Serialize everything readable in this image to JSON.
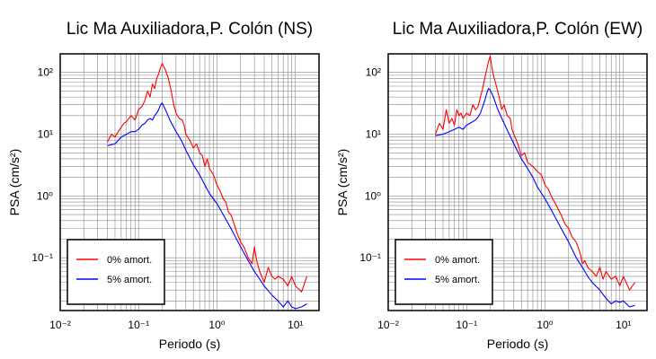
{
  "chart_data": [
    {
      "type": "line",
      "title": "Lic Ma Auxiliadora,P. Colón (NS)",
      "xlabel": "Periodo (s)",
      "ylabel": "PSA (cm/s²)",
      "xscale": "log",
      "yscale": "log",
      "xlim": [
        0.01,
        20
      ],
      "ylim": [
        0.014,
        200
      ],
      "xticks": [
        0.01,
        0.1,
        1,
        10
      ],
      "xtick_labels": [
        "10⁻²",
        "10⁻¹",
        "10⁰",
        "10¹"
      ],
      "yticks": [
        0.1,
        1,
        10,
        100
      ],
      "ytick_labels": [
        "10⁻¹",
        "10⁰",
        "10¹",
        "10²"
      ],
      "grid": true,
      "legend_position": "bottom-left",
      "series": [
        {
          "name": "0% amort.",
          "color": "#ff0000",
          "points": [
            [
              0.04,
              7.5
            ],
            [
              0.045,
              10
            ],
            [
              0.05,
              9
            ],
            [
              0.055,
              11
            ],
            [
              0.06,
              13
            ],
            [
              0.065,
              15
            ],
            [
              0.07,
              16
            ],
            [
              0.08,
              20
            ],
            [
              0.09,
              17
            ],
            [
              0.1,
              25
            ],
            [
              0.11,
              28
            ],
            [
              0.12,
              35
            ],
            [
              0.13,
              50
            ],
            [
              0.14,
              40
            ],
            [
              0.15,
              65
            ],
            [
              0.16,
              55
            ],
            [
              0.17,
              80
            ],
            [
              0.18,
              95
            ],
            [
              0.19,
              120
            ],
            [
              0.2,
              140
            ],
            [
              0.22,
              110
            ],
            [
              0.24,
              80
            ],
            [
              0.26,
              50
            ],
            [
              0.28,
              30
            ],
            [
              0.3,
              22
            ],
            [
              0.33,
              18
            ],
            [
              0.36,
              17
            ],
            [
              0.38,
              14
            ],
            [
              0.4,
              10
            ],
            [
              0.45,
              8
            ],
            [
              0.5,
              6
            ],
            [
              0.55,
              7
            ],
            [
              0.6,
              5
            ],
            [
              0.65,
              4.5
            ],
            [
              0.7,
              3
            ],
            [
              0.75,
              4
            ],
            [
              0.8,
              2.8
            ],
            [
              0.9,
              2.2
            ],
            [
              1.0,
              1.5
            ],
            [
              1.1,
              1.2
            ],
            [
              1.2,
              0.9
            ],
            [
              1.3,
              0.8
            ],
            [
              1.4,
              0.55
            ],
            [
              1.5,
              0.5
            ],
            [
              1.6,
              0.4
            ],
            [
              1.8,
              0.25
            ],
            [
              2.0,
              0.18
            ],
            [
              2.2,
              0.15
            ],
            [
              2.5,
              0.1
            ],
            [
              2.8,
              0.08
            ],
            [
              3.0,
              0.15
            ],
            [
              3.2,
              0.09
            ],
            [
              3.5,
              0.06
            ],
            [
              4.0,
              0.04
            ],
            [
              4.5,
              0.07
            ],
            [
              5.0,
              0.05
            ],
            [
              5.5,
              0.045
            ],
            [
              6.0,
              0.05
            ],
            [
              7.0,
              0.045
            ],
            [
              8.0,
              0.035
            ],
            [
              9.0,
              0.05
            ],
            [
              10.0,
              0.035
            ],
            [
              12.0,
              0.028
            ],
            [
              14.0,
              0.05
            ]
          ]
        },
        {
          "name": "5% amort.",
          "color": "#0000ff",
          "points": [
            [
              0.04,
              6.5
            ],
            [
              0.05,
              7
            ],
            [
              0.06,
              9
            ],
            [
              0.07,
              10
            ],
            [
              0.08,
              11
            ],
            [
              0.09,
              11
            ],
            [
              0.1,
              12
            ],
            [
              0.11,
              14
            ],
            [
              0.12,
              15
            ],
            [
              0.13,
              17
            ],
            [
              0.14,
              18
            ],
            [
              0.15,
              17
            ],
            [
              0.16,
              20
            ],
            [
              0.17,
              22
            ],
            [
              0.18,
              25
            ],
            [
              0.19,
              30
            ],
            [
              0.2,
              32
            ],
            [
              0.22,
              25
            ],
            [
              0.25,
              17
            ],
            [
              0.3,
              11
            ],
            [
              0.35,
              8
            ],
            [
              0.4,
              5.5
            ],
            [
              0.5,
              3.2
            ],
            [
              0.6,
              2.2
            ],
            [
              0.7,
              1.5
            ],
            [
              0.8,
              1.1
            ],
            [
              1.0,
              0.75
            ],
            [
              1.2,
              0.5
            ],
            [
              1.5,
              0.3
            ],
            [
              2.0,
              0.15
            ],
            [
              2.5,
              0.09
            ],
            [
              3.0,
              0.06
            ],
            [
              3.5,
              0.045
            ],
            [
              4.0,
              0.035
            ],
            [
              5.0,
              0.025
            ],
            [
              6.0,
              0.02
            ],
            [
              7.0,
              0.016
            ],
            [
              8.0,
              0.02
            ],
            [
              9.0,
              0.016
            ],
            [
              10.0,
              0.015
            ],
            [
              12.0,
              0.016
            ],
            [
              14.0,
              0.018
            ]
          ]
        }
      ]
    },
    {
      "type": "line",
      "title": "Lic Ma Auxiliadora,P. Colón (EW)",
      "xlabel": "Periodo (s)",
      "ylabel": "PSA (cm/s²)",
      "xscale": "log",
      "yscale": "log",
      "xlim": [
        0.01,
        20
      ],
      "ylim": [
        0.014,
        200
      ],
      "xticks": [
        0.01,
        0.1,
        1,
        10
      ],
      "xtick_labels": [
        "10⁻²",
        "10⁻¹",
        "10⁰",
        "10¹"
      ],
      "yticks": [
        0.1,
        1,
        10,
        100
      ],
      "ytick_labels": [
        "10⁻¹",
        "10⁰",
        "10¹",
        "10²"
      ],
      "grid": true,
      "legend_position": "bottom-left",
      "series": [
        {
          "name": "0% amort.",
          "color": "#ff0000",
          "points": [
            [
              0.04,
              10
            ],
            [
              0.045,
              15
            ],
            [
              0.05,
              12
            ],
            [
              0.055,
              25
            ],
            [
              0.06,
              15
            ],
            [
              0.065,
              18
            ],
            [
              0.07,
              14
            ],
            [
              0.075,
              25
            ],
            [
              0.08,
              20
            ],
            [
              0.085,
              22
            ],
            [
              0.09,
              18
            ],
            [
              0.1,
              22
            ],
            [
              0.11,
              20
            ],
            [
              0.12,
              30
            ],
            [
              0.13,
              25
            ],
            [
              0.14,
              28
            ],
            [
              0.15,
              40
            ],
            [
              0.16,
              55
            ],
            [
              0.17,
              80
            ],
            [
              0.18,
              110
            ],
            [
              0.19,
              150
            ],
            [
              0.2,
              185
            ],
            [
              0.21,
              120
            ],
            [
              0.22,
              90
            ],
            [
              0.24,
              60
            ],
            [
              0.26,
              40
            ],
            [
              0.28,
              25
            ],
            [
              0.3,
              30
            ],
            [
              0.33,
              20
            ],
            [
              0.36,
              18
            ],
            [
              0.38,
              12
            ],
            [
              0.4,
              10
            ],
            [
              0.45,
              7
            ],
            [
              0.5,
              4.5
            ],
            [
              0.55,
              5
            ],
            [
              0.6,
              3.5
            ],
            [
              0.7,
              3
            ],
            [
              0.8,
              2.5
            ],
            [
              0.9,
              2.2
            ],
            [
              1.0,
              1.5
            ],
            [
              1.1,
              1.3
            ],
            [
              1.2,
              1.0
            ],
            [
              1.4,
              0.7
            ],
            [
              1.6,
              0.5
            ],
            [
              1.8,
              0.35
            ],
            [
              2.0,
              0.3
            ],
            [
              2.2,
              0.22
            ],
            [
              2.5,
              0.18
            ],
            [
              2.8,
              0.12
            ],
            [
              3.0,
              0.08
            ],
            [
              3.2,
              0.09
            ],
            [
              3.5,
              0.07
            ],
            [
              4.0,
              0.06
            ],
            [
              4.5,
              0.05
            ],
            [
              5.0,
              0.07
            ],
            [
              5.5,
              0.045
            ],
            [
              6.0,
              0.06
            ],
            [
              7.0,
              0.045
            ],
            [
              8.0,
              0.05
            ],
            [
              9.0,
              0.035
            ],
            [
              10.0,
              0.05
            ],
            [
              12.0,
              0.03
            ],
            [
              14.0,
              0.04
            ]
          ]
        },
        {
          "name": "5% amort.",
          "color": "#0000ff",
          "points": [
            [
              0.04,
              9.5
            ],
            [
              0.05,
              10
            ],
            [
              0.06,
              11
            ],
            [
              0.07,
              12
            ],
            [
              0.08,
              13
            ],
            [
              0.09,
              12
            ],
            [
              0.1,
              14
            ],
            [
              0.11,
              15
            ],
            [
              0.12,
              16
            ],
            [
              0.13,
              17
            ],
            [
              0.14,
              19
            ],
            [
              0.15,
              22
            ],
            [
              0.16,
              28
            ],
            [
              0.17,
              35
            ],
            [
              0.18,
              45
            ],
            [
              0.19,
              55
            ],
            [
              0.2,
              52
            ],
            [
              0.22,
              40
            ],
            [
              0.25,
              25
            ],
            [
              0.3,
              15
            ],
            [
              0.35,
              10
            ],
            [
              0.4,
              7
            ],
            [
              0.5,
              4
            ],
            [
              0.6,
              2.8
            ],
            [
              0.7,
              2
            ],
            [
              0.8,
              1.4
            ],
            [
              1.0,
              0.9
            ],
            [
              1.2,
              0.6
            ],
            [
              1.5,
              0.35
            ],
            [
              2.0,
              0.18
            ],
            [
              2.5,
              0.1
            ],
            [
              3.0,
              0.07
            ],
            [
              3.5,
              0.05
            ],
            [
              4.0,
              0.04
            ],
            [
              5.0,
              0.03
            ],
            [
              6.0,
              0.022
            ],
            [
              7.0,
              0.018
            ],
            [
              8.0,
              0.02
            ],
            [
              9.0,
              0.019
            ],
            [
              10.0,
              0.02
            ],
            [
              12.0,
              0.016
            ],
            [
              14.0,
              0.017
            ]
          ]
        }
      ]
    }
  ]
}
